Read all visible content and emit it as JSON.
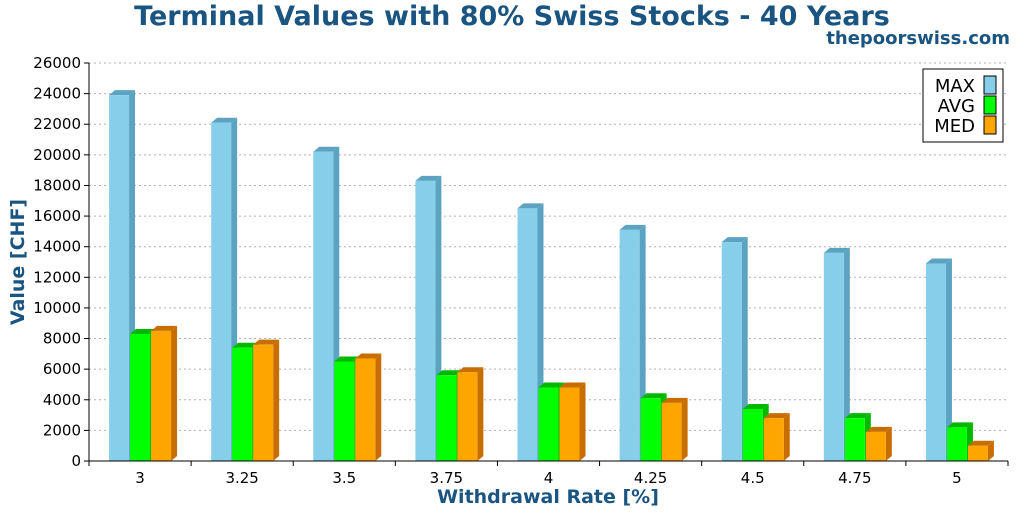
{
  "chart_data": {
    "type": "bar",
    "title": "Terminal Values with 80% Swiss Stocks - 40 Years",
    "watermark": "thepoorswiss.com",
    "xlabel": "Withdrawal Rate [%]",
    "ylabel": "Value [CHF]",
    "categories": [
      "3",
      "3.25",
      "3.5",
      "3.75",
      "4",
      "4.25",
      "4.5",
      "4.75",
      "5"
    ],
    "ylim": [
      0,
      26000
    ],
    "yticks": [
      "0",
      "2000",
      "4000",
      "6000",
      "8000",
      "10000",
      "12000",
      "14000",
      "16000",
      "18000",
      "20000",
      "22000",
      "24000",
      "26000"
    ],
    "grid": true,
    "legend_position": "top-right",
    "series": [
      {
        "name": "MAX",
        "color": "#87ceeb",
        "side": "#5ba3c0",
        "values": [
          23900,
          22100,
          20200,
          18300,
          16500,
          15100,
          14300,
          13600,
          12900
        ]
      },
      {
        "name": "AVG",
        "color": "#00ff00",
        "side": "#00b800",
        "values": [
          8300,
          7400,
          6500,
          5600,
          4800,
          4100,
          3400,
          2800,
          2200
        ]
      },
      {
        "name": "MED",
        "color": "#ffa500",
        "side": "#c86e00",
        "values": [
          8500,
          7600,
          6700,
          5800,
          4800,
          3800,
          2800,
          1900,
          1000
        ]
      }
    ]
  }
}
